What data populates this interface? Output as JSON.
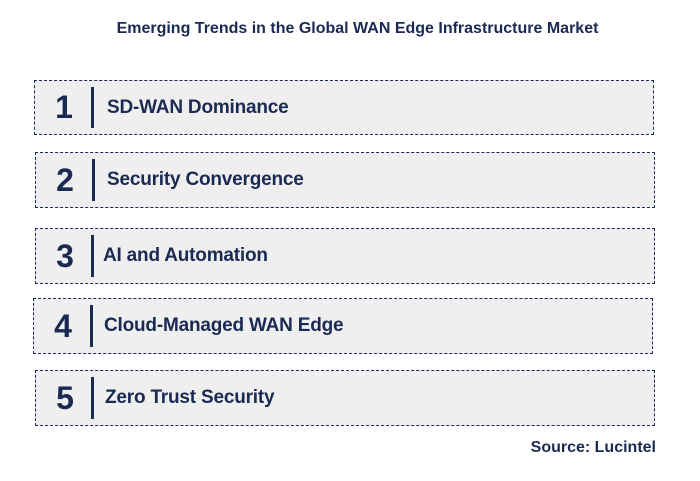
{
  "title": "Emerging Trends in the Global WAN Edge Infrastructure Market",
  "trends": [
    {
      "number": "1",
      "label": "SD-WAN Dominance"
    },
    {
      "number": "2",
      "label": "Security Convergence"
    },
    {
      "number": "3",
      "label": "AI and Automation"
    },
    {
      "number": "4",
      "label": "Cloud-Managed WAN Edge"
    },
    {
      "number": "5",
      "label": "Zero Trust Security"
    }
  ],
  "source": "Source: Lucintel",
  "colors": {
    "text": "#1b2a52",
    "box_background": "#efefef",
    "border": "#1b2a52"
  }
}
